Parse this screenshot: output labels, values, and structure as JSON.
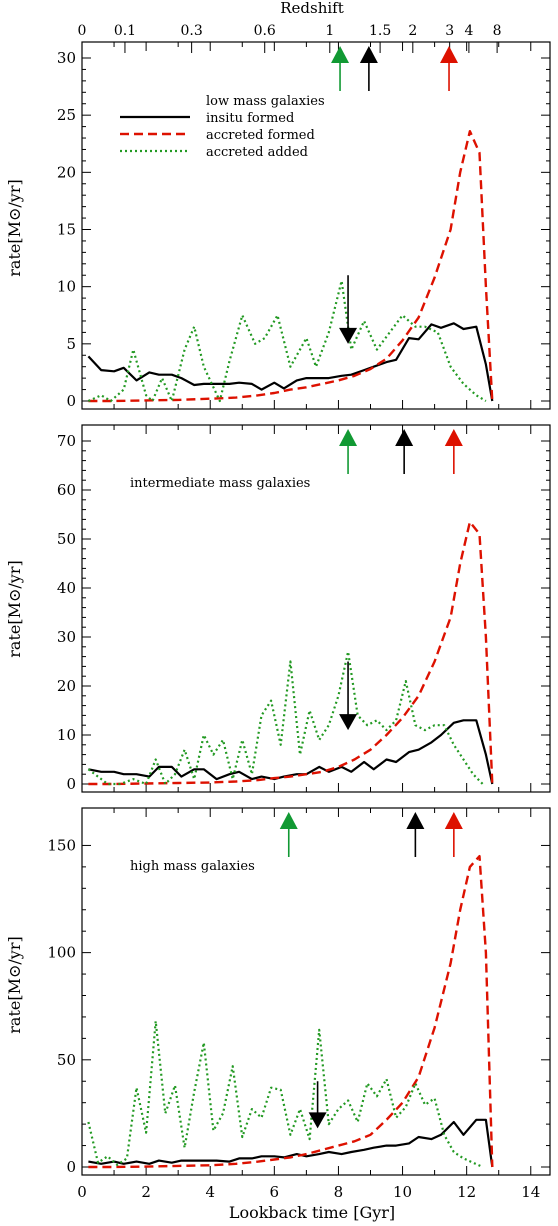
{
  "figure": {
    "top_axis_label": "Redshift",
    "top_axis_ticks": [
      {
        "t": 0.0,
        "label": "0"
      },
      {
        "t": 1.34,
        "label": "0.1"
      },
      {
        "t": 3.42,
        "label": "0.3"
      },
      {
        "t": 5.7,
        "label": "0.6"
      },
      {
        "t": 7.73,
        "label": "1"
      },
      {
        "t": 9.3,
        "label": "1.5"
      },
      {
        "t": 10.32,
        "label": "2"
      },
      {
        "t": 11.47,
        "label": "3"
      },
      {
        "t": 12.07,
        "label": "4"
      },
      {
        "t": 12.95,
        "label": "8"
      }
    ],
    "xlabel": "Lookback time [Gyr]",
    "x_range": [
      0,
      14.6
    ],
    "x_ticks": [
      0,
      2,
      4,
      6,
      8,
      10,
      12,
      14
    ],
    "ylabel": "rate[M⊙/yr]",
    "colors": {
      "insitu": "#000000",
      "accreted_formed": "#dd1100",
      "accreted_added": "#229922",
      "arrow_green": "#119933",
      "arrow_black": "#000000",
      "arrow_red": "#dd1100"
    }
  },
  "chart_data": [
    {
      "type": "line",
      "title": "low mass galaxies",
      "ylim": [
        0,
        30
      ],
      "y_ticks": [
        0,
        5,
        10,
        15,
        20,
        25,
        30
      ],
      "legend_position": "top-left",
      "legend": [
        "insitu formed",
        "accreted formed",
        "accreted added"
      ],
      "series": [
        {
          "name": "insitu formed",
          "key": "insitu",
          "x": [
            0.2,
            0.6,
            1.0,
            1.3,
            1.7,
            2.1,
            2.4,
            2.8,
            3.1,
            3.5,
            3.8,
            4.2,
            4.6,
            4.9,
            5.3,
            5.6,
            6.0,
            6.3,
            6.7,
            7.0,
            7.4,
            7.7,
            8.1,
            8.4,
            8.8,
            9.1,
            9.5,
            9.8,
            10.2,
            10.5,
            10.9,
            11.2,
            11.6,
            11.9,
            12.3,
            12.6,
            12.8
          ],
          "values": [
            3.9,
            2.7,
            2.6,
            2.9,
            1.8,
            2.5,
            2.3,
            2.3,
            2.0,
            1.4,
            1.5,
            1.5,
            1.5,
            1.6,
            1.5,
            1.0,
            1.6,
            1.1,
            1.8,
            2.0,
            2.0,
            2.0,
            2.2,
            2.3,
            2.7,
            3.0,
            3.4,
            3.6,
            5.5,
            5.4,
            6.7,
            6.4,
            6.8,
            6.3,
            6.5,
            3.2,
            0.0
          ]
        },
        {
          "name": "accreted formed",
          "key": "accreted_formed",
          "x": [
            0.2,
            1.0,
            2.0,
            3.0,
            4.0,
            4.8,
            5.5,
            6.0,
            6.5,
            7.0,
            7.5,
            8.0,
            8.5,
            9.0,
            9.5,
            10.0,
            10.5,
            11.0,
            11.5,
            11.8,
            12.1,
            12.4,
            12.6,
            12.8
          ],
          "values": [
            0.0,
            0.0,
            0.05,
            0.1,
            0.2,
            0.3,
            0.5,
            0.7,
            1.0,
            1.2,
            1.5,
            1.8,
            2.2,
            2.8,
            3.7,
            5.3,
            7.3,
            10.8,
            15.0,
            20.0,
            23.6,
            21.7,
            10.0,
            0.0
          ]
        },
        {
          "name": "accreted added",
          "key": "accreted_added",
          "x": [
            0.2,
            0.6,
            0.9,
            1.3,
            1.6,
            2.0,
            2.2,
            2.5,
            2.8,
            3.2,
            3.5,
            3.8,
            4.3,
            4.6,
            5.0,
            5.4,
            5.7,
            6.1,
            6.5,
            7.0,
            7.3,
            7.7,
            8.1,
            8.4,
            8.8,
            9.2,
            9.6,
            10.0,
            10.4,
            10.7,
            11.1,
            11.5,
            11.9,
            12.3,
            12.6
          ],
          "values": [
            0.0,
            0.5,
            0.0,
            1.0,
            4.5,
            0.5,
            0.0,
            2.0,
            0.0,
            4.5,
            6.5,
            3.0,
            0.0,
            3.5,
            7.5,
            5.0,
            5.5,
            7.5,
            3.0,
            5.5,
            3.0,
            6.0,
            10.5,
            4.5,
            7.0,
            4.5,
            6.0,
            7.5,
            6.5,
            6.5,
            6.0,
            3.0,
            1.5,
            0.5,
            0.0
          ]
        }
      ],
      "arrows": [
        {
          "x": 8.05,
          "dir": "up",
          "style": "large",
          "color": "green",
          "key": "arrow_green"
        },
        {
          "x": 8.95,
          "dir": "up",
          "style": "large",
          "color": "black",
          "key": "arrow_black"
        },
        {
          "x": 11.45,
          "dir": "up",
          "style": "large",
          "color": "red",
          "key": "arrow_red"
        },
        {
          "x": 8.3,
          "dir": "down",
          "style": "data",
          "y_from": 11.0,
          "y_to": 5.0,
          "color": "black",
          "key": "arrow_black"
        }
      ]
    },
    {
      "type": "line",
      "title": "intermediate mass galaxies",
      "ylim": [
        0,
        70
      ],
      "y_ticks": [
        0,
        10,
        20,
        30,
        40,
        50,
        60,
        70
      ],
      "series": [
        {
          "name": "insitu formed",
          "key": "insitu",
          "x": [
            0.2,
            0.6,
            1.0,
            1.3,
            1.7,
            2.1,
            2.4,
            2.8,
            3.1,
            3.5,
            3.8,
            4.2,
            4.6,
            4.9,
            5.3,
            5.6,
            6.0,
            6.3,
            6.7,
            7.0,
            7.4,
            7.7,
            8.1,
            8.4,
            8.8,
            9.1,
            9.5,
            9.8,
            10.2,
            10.5,
            10.9,
            11.2,
            11.6,
            11.9,
            12.3,
            12.6,
            12.8
          ],
          "values": [
            3.0,
            2.5,
            2.5,
            2.0,
            2.0,
            1.5,
            3.5,
            3.5,
            1.5,
            3.0,
            3.0,
            1.0,
            2.0,
            2.5,
            1.0,
            1.5,
            1.0,
            1.5,
            2.0,
            2.0,
            3.5,
            2.5,
            3.5,
            2.5,
            4.5,
            3.0,
            5.0,
            4.5,
            6.5,
            7.0,
            8.5,
            10.0,
            12.5,
            13.0,
            13.0,
            6.0,
            0.0
          ]
        },
        {
          "name": "accreted formed",
          "key": "accreted_formed",
          "x": [
            0.2,
            1.0,
            2.0,
            3.0,
            4.0,
            4.8,
            5.5,
            6.0,
            6.5,
            7.0,
            7.5,
            8.0,
            8.5,
            9.0,
            9.5,
            10.0,
            10.5,
            11.0,
            11.5,
            11.8,
            12.1,
            12.4,
            12.6,
            12.8
          ],
          "values": [
            0.0,
            0.0,
            0.1,
            0.2,
            0.3,
            0.5,
            0.8,
            1.2,
            1.5,
            2.0,
            2.5,
            3.5,
            5.0,
            7.0,
            10.0,
            13.5,
            18.0,
            25.0,
            34.0,
            45.0,
            53.5,
            51.0,
            30.0,
            0.0
          ]
        },
        {
          "name": "accreted added",
          "key": "accreted_added",
          "x": [
            0.2,
            0.5,
            0.8,
            1.2,
            1.6,
            2.0,
            2.3,
            2.6,
            2.9,
            3.2,
            3.5,
            3.8,
            4.1,
            4.4,
            4.7,
            5.0,
            5.3,
            5.6,
            5.9,
            6.2,
            6.5,
            6.8,
            7.1,
            7.4,
            7.7,
            8.0,
            8.3,
            8.6,
            8.9,
            9.2,
            9.5,
            9.8,
            10.1,
            10.4,
            10.7,
            11.0,
            11.3,
            11.6,
            11.9,
            12.2,
            12.5
          ],
          "values": [
            3.0,
            1.5,
            0.0,
            0.0,
            1.0,
            0.0,
            5.0,
            0.0,
            2.0,
            7.0,
            1.0,
            10.0,
            6.0,
            9.0,
            1.0,
            9.0,
            2.0,
            14.0,
            17.0,
            8.0,
            25.0,
            6.0,
            15.0,
            9.0,
            12.0,
            18.0,
            27.0,
            14.0,
            12.0,
            13.0,
            11.0,
            13.0,
            21.0,
            12.0,
            11.0,
            12.0,
            12.0,
            8.0,
            5.0,
            2.0,
            0.0
          ]
        }
      ],
      "arrows": [
        {
          "x": 8.3,
          "dir": "up",
          "style": "large",
          "color": "green",
          "key": "arrow_green"
        },
        {
          "x": 10.05,
          "dir": "up",
          "style": "large",
          "color": "black",
          "key": "arrow_black"
        },
        {
          "x": 11.6,
          "dir": "up",
          "style": "large",
          "color": "red",
          "key": "arrow_red"
        },
        {
          "x": 8.3,
          "dir": "down",
          "style": "data",
          "y_from": 25.0,
          "y_to": 11.0,
          "color": "black",
          "key": "arrow_black"
        }
      ]
    },
    {
      "type": "line",
      "title": "high mass galaxies",
      "ylim": [
        0,
        160
      ],
      "y_ticks": [
        0,
        50,
        100,
        150
      ],
      "series": [
        {
          "name": "insitu formed",
          "key": "insitu",
          "x": [
            0.2,
            0.6,
            1.0,
            1.3,
            1.7,
            2.1,
            2.4,
            2.8,
            3.1,
            3.5,
            3.8,
            4.2,
            4.6,
            4.9,
            5.3,
            5.6,
            6.0,
            6.3,
            6.7,
            7.0,
            7.4,
            7.7,
            8.1,
            8.4,
            8.8,
            9.1,
            9.5,
            9.8,
            10.2,
            10.5,
            10.9,
            11.2,
            11.6,
            11.9,
            12.3,
            12.6,
            12.8
          ],
          "values": [
            2.5,
            1.5,
            2.5,
            1.5,
            2.5,
            1.5,
            3.0,
            2.0,
            3.0,
            3.0,
            3.0,
            3.0,
            2.5,
            4.0,
            4.0,
            5.0,
            5.0,
            4.5,
            6.0,
            5.0,
            6.0,
            7.0,
            6.0,
            7.0,
            8.0,
            9.0,
            10.0,
            10.0,
            11.0,
            14.0,
            13.0,
            15.0,
            21.0,
            15.0,
            22.0,
            22.0,
            0.0
          ]
        },
        {
          "name": "accreted formed",
          "key": "accreted_formed",
          "x": [
            0.2,
            1.0,
            2.0,
            3.0,
            4.0,
            4.8,
            5.5,
            6.0,
            6.5,
            7.0,
            7.5,
            8.0,
            8.5,
            9.0,
            9.5,
            10.0,
            10.5,
            11.0,
            11.5,
            11.8,
            12.1,
            12.4,
            12.6,
            12.8
          ],
          "values": [
            0.0,
            0.0,
            0.2,
            0.5,
            0.8,
            1.5,
            2.5,
            3.5,
            4.5,
            6.0,
            8.0,
            10.0,
            12.0,
            15.0,
            22.0,
            30.0,
            42.0,
            65.0,
            95.0,
            120.0,
            140.0,
            145.0,
            100.0,
            0.0
          ]
        },
        {
          "name": "accreted added",
          "key": "accreted_added",
          "x": [
            0.2,
            0.5,
            0.8,
            1.1,
            1.4,
            1.7,
            2.0,
            2.3,
            2.6,
            2.9,
            3.2,
            3.5,
            3.8,
            4.1,
            4.4,
            4.7,
            5.0,
            5.3,
            5.6,
            5.9,
            6.2,
            6.5,
            6.8,
            7.1,
            7.4,
            7.7,
            8.0,
            8.3,
            8.6,
            8.9,
            9.2,
            9.5,
            9.8,
            10.1,
            10.4,
            10.7,
            11.0,
            11.3,
            11.6,
            11.9,
            12.2,
            12.5
          ],
          "values": [
            21.0,
            2.0,
            5.0,
            1.0,
            4.0,
            37.0,
            16.0,
            68.0,
            25.0,
            38.0,
            9.0,
            35.0,
            58.0,
            17.0,
            25.0,
            47.0,
            14.0,
            27.0,
            23.0,
            37.0,
            36.0,
            15.0,
            27.0,
            13.0,
            64.0,
            20.0,
            27.0,
            31.0,
            21.0,
            39.0,
            33.0,
            41.0,
            23.0,
            28.0,
            39.0,
            29.0,
            32.0,
            15.0,
            7.0,
            4.0,
            2.0,
            0.0
          ]
        }
      ],
      "arrows": [
        {
          "x": 6.45,
          "dir": "up",
          "style": "large",
          "color": "green",
          "key": "arrow_green"
        },
        {
          "x": 10.4,
          "dir": "up",
          "style": "large",
          "color": "black",
          "key": "arrow_black"
        },
        {
          "x": 11.6,
          "dir": "up",
          "style": "large",
          "color": "red",
          "key": "arrow_red"
        },
        {
          "x": 7.35,
          "dir": "down",
          "style": "data",
          "y_from": 40.0,
          "y_to": 18.0,
          "color": "black",
          "key": "arrow_black"
        }
      ]
    }
  ]
}
